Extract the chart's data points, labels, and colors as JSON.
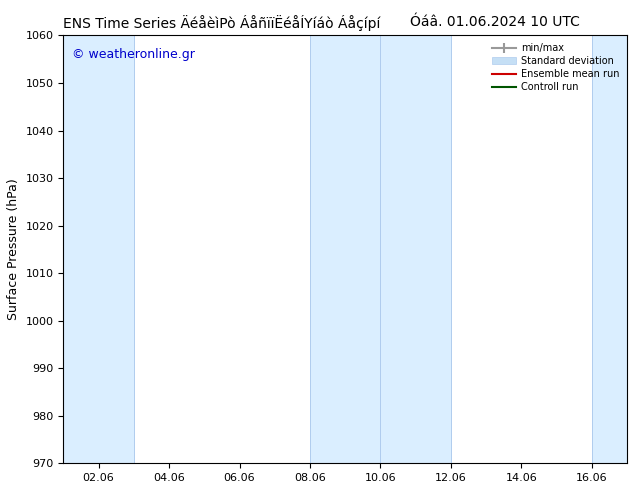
{
  "title_left": "ENS Time Series ÄéåèìPò ÁåñïïåìÍáò ÁåçÍpí",
  "title_right": "Óáâ. 01.06.2024 10 UTC",
  "ylabel": "Surface Pressure (hPa)",
  "ylim": [
    970,
    1060
  ],
  "yticks": [
    970,
    980,
    990,
    1000,
    1010,
    1020,
    1030,
    1040,
    1050,
    1060
  ],
  "xtick_labels": [
    "02.06",
    "04.06",
    "06.06",
    "08.06",
    "10.06",
    "12.06",
    "14.06",
    "16.06"
  ],
  "xtick_positions": [
    1,
    3,
    5,
    7,
    9,
    11,
    13,
    15
  ],
  "xlim": [
    0,
    16
  ],
  "background_color": "#ffffff",
  "plot_bg_color": "#ffffff",
  "band_color": "#daeeff",
  "band_edge_color": "#b0ccee",
  "bands": [
    {
      "x_start": 0.0,
      "x_end": 2.0
    },
    {
      "x_start": 7.0,
      "x_end": 9.0
    },
    {
      "x_start": 9.0,
      "x_end": 11.0
    },
    {
      "x_start": 15.0,
      "x_end": 16.2
    }
  ],
  "watermark": "© weatheronline.gr",
  "watermark_color": "#0000cc",
  "watermark_fontsize": 9,
  "legend_items": [
    {
      "label": "min/max",
      "color": "#999999",
      "lw": 1.5
    },
    {
      "label": "Standard deviation",
      "color": "#c5dff5",
      "lw": 8
    },
    {
      "label": "Ensemble mean run",
      "color": "#cc0000",
      "lw": 1.5
    },
    {
      "label": "Controll run",
      "color": "#005500",
      "lw": 1.5
    }
  ],
  "title_fontsize": 10,
  "axis_fontsize": 9,
  "tick_fontsize": 8,
  "legend_fontsize": 7
}
